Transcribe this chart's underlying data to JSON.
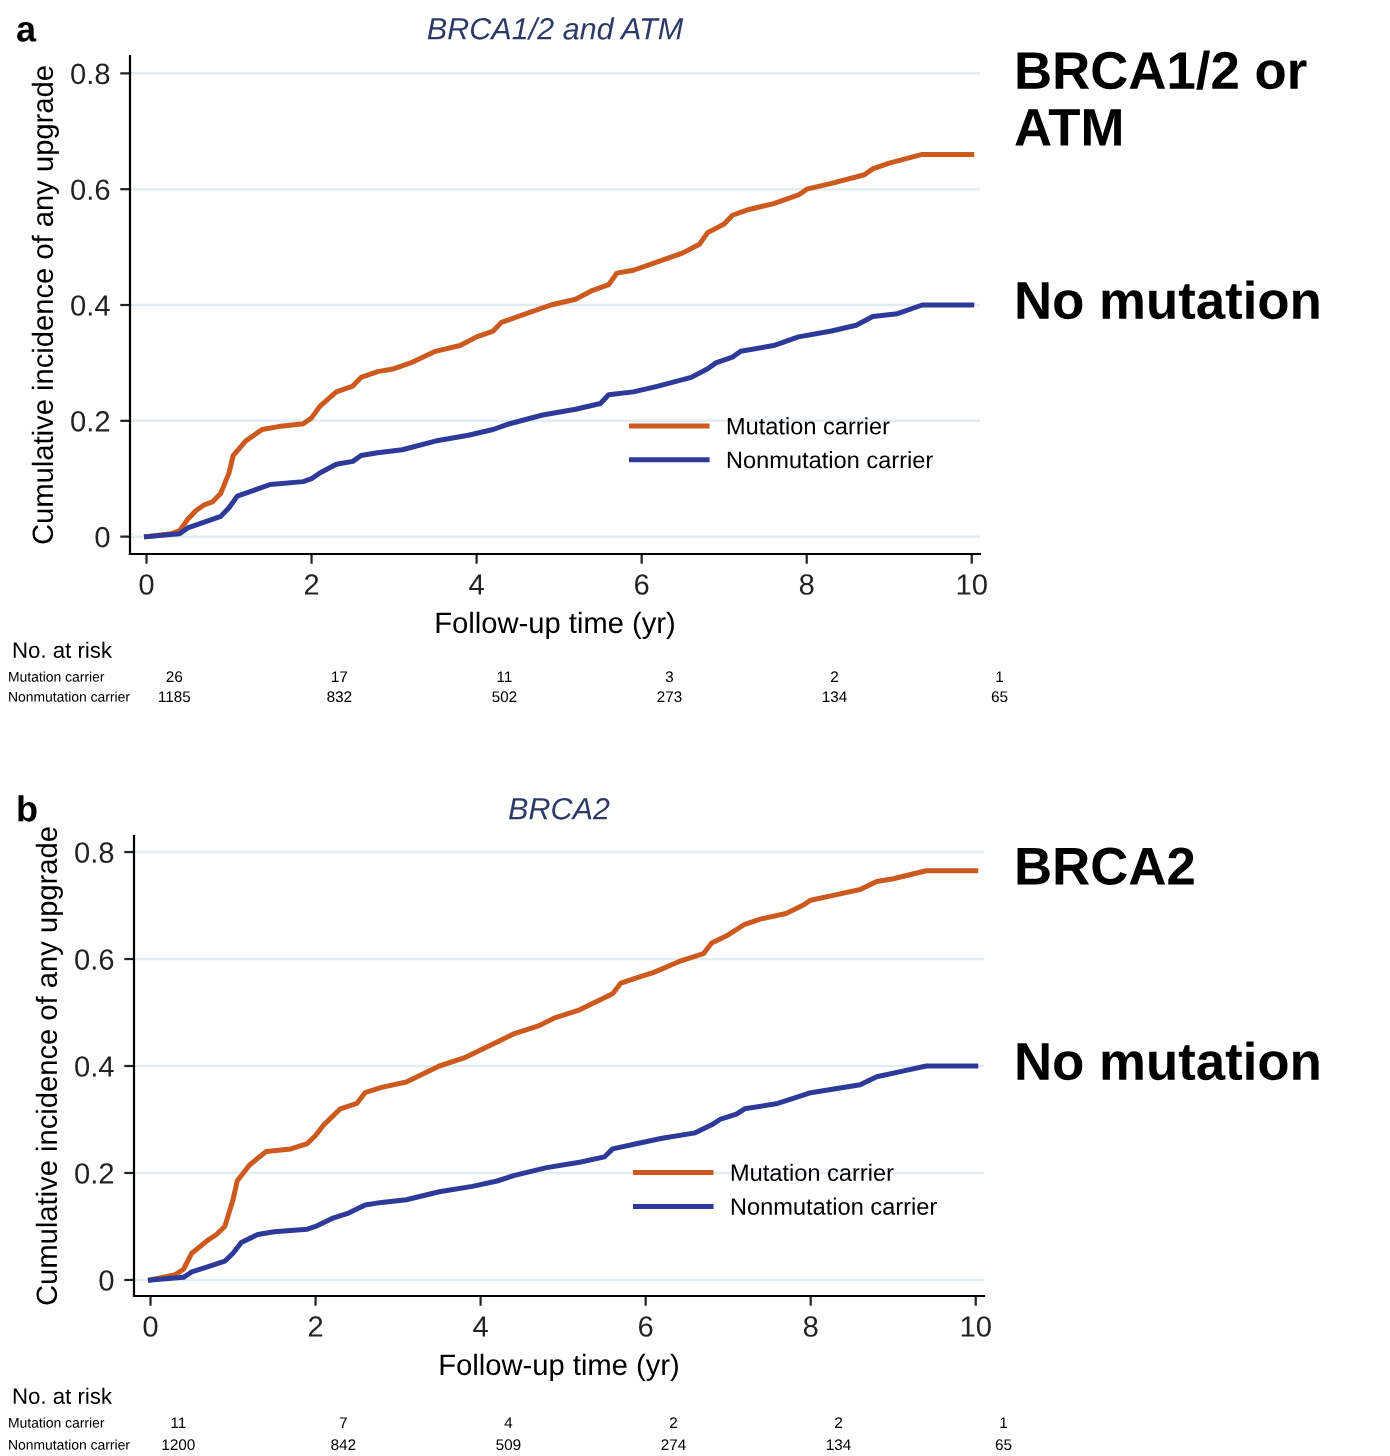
{
  "chart_data": [
    {
      "type": "line",
      "title": "BRCA1/2 and ATM",
      "xlabel": "Follow-up time (yr)",
      "ylabel": "Cumulative incidence of any upgrade",
      "xlim": [
        -0.2,
        10.1
      ],
      "ylim": [
        -0.03,
        0.83
      ],
      "xticks": [
        0,
        2,
        4,
        6,
        8,
        10
      ],
      "yticks": [
        0,
        0.2,
        0.4,
        0.6,
        0.8
      ],
      "grid": "y",
      "legend": "bottom right",
      "marker": "none",
      "line_style": "solid",
      "series": [
        {
          "name": "Mutation carrier",
          "color": "#cc5a1f",
          "x": [
            0,
            0.3,
            0.4,
            0.5,
            0.6,
            0.7,
            0.8,
            0.9,
            1.0,
            1.05,
            1.2,
            1.4,
            1.6,
            1.9,
            2.0,
            2.1,
            2.3,
            2.5,
            2.6,
            2.8,
            3.0,
            3.2,
            3.5,
            3.8,
            4.0,
            4.2,
            4.3,
            4.6,
            4.9,
            5.2,
            5.4,
            5.6,
            5.7,
            5.9,
            6.2,
            6.5,
            6.7,
            6.8,
            7.0,
            7.1,
            7.3,
            7.6,
            7.9,
            8.0,
            8.3,
            8.7,
            8.8,
            9.0,
            9.4,
            10
          ],
          "values": [
            0,
            0.005,
            0.01,
            0.03,
            0.045,
            0.055,
            0.06,
            0.075,
            0.11,
            0.14,
            0.165,
            0.185,
            0.19,
            0.195,
            0.205,
            0.225,
            0.25,
            0.26,
            0.275,
            0.285,
            0.29,
            0.3,
            0.32,
            0.33,
            0.345,
            0.355,
            0.37,
            0.385,
            0.4,
            0.41,
            0.425,
            0.435,
            0.455,
            0.46,
            0.475,
            0.49,
            0.505,
            0.525,
            0.54,
            0.555,
            0.565,
            0.575,
            0.59,
            0.6,
            0.61,
            0.625,
            0.635,
            0.645,
            0.66,
            0.66
          ]
        },
        {
          "name": "Nonmutation carrier",
          "color": "#2e3a9a",
          "x": [
            0,
            0.4,
            0.5,
            0.7,
            0.9,
            1.0,
            1.1,
            1.3,
            1.5,
            1.9,
            2.0,
            2.1,
            2.3,
            2.5,
            2.6,
            2.8,
            3.1,
            3.5,
            3.9,
            4.2,
            4.4,
            4.8,
            5.2,
            5.5,
            5.6,
            5.9,
            6.2,
            6.6,
            6.8,
            6.9,
            7.1,
            7.2,
            7.6,
            7.9,
            8.3,
            8.6,
            8.8,
            9.1,
            9.4,
            10
          ],
          "values": [
            0,
            0.005,
            0.015,
            0.025,
            0.035,
            0.05,
            0.07,
            0.08,
            0.09,
            0.095,
            0.1,
            0.11,
            0.125,
            0.13,
            0.14,
            0.145,
            0.15,
            0.165,
            0.175,
            0.185,
            0.195,
            0.21,
            0.22,
            0.23,
            0.245,
            0.25,
            0.26,
            0.275,
            0.29,
            0.3,
            0.31,
            0.32,
            0.33,
            0.345,
            0.355,
            0.365,
            0.38,
            0.385,
            0.4,
            0.4
          ]
        }
      ],
      "annotations": [
        "a",
        "BRCA1/2 or ATM",
        "No mutation",
        "No. at risk",
        "Mutation carrier",
        "26",
        "17",
        "11",
        "3",
        "2",
        "1",
        "Nonmutation carrier",
        "1185",
        "832",
        "502",
        "273",
        "134",
        "65"
      ]
    },
    {
      "type": "line",
      "title": "BRCA2",
      "xlabel": "Follow-up time (yr)",
      "ylabel": "Cumulative incidence of any upgrade",
      "xlim": [
        -0.2,
        10.1
      ],
      "ylim": [
        -0.03,
        0.83
      ],
      "xticks": [
        0,
        2,
        4,
        6,
        8,
        10
      ],
      "yticks": [
        0,
        0.2,
        0.4,
        0.6,
        0.8
      ],
      "grid": "y",
      "legend": "bottom right",
      "marker": "none",
      "line_style": "solid",
      "series": [
        {
          "name": "Mutation carrier",
          "color": "#cc5a1f",
          "x": [
            0,
            0.3,
            0.4,
            0.5,
            0.7,
            0.8,
            0.9,
            1.0,
            1.05,
            1.2,
            1.4,
            1.7,
            1.9,
            2.0,
            2.1,
            2.3,
            2.5,
            2.6,
            2.8,
            3.1,
            3.3,
            3.5,
            3.8,
            4.0,
            4.2,
            4.4,
            4.7,
            4.9,
            5.2,
            5.4,
            5.6,
            5.7,
            5.9,
            6.1,
            6.4,
            6.7,
            6.8,
            7.0,
            7.2,
            7.4,
            7.7,
            7.9,
            8.0,
            8.3,
            8.6,
            8.8,
            9.0,
            9.4,
            10
          ],
          "values": [
            0,
            0.01,
            0.02,
            0.05,
            0.075,
            0.085,
            0.1,
            0.15,
            0.185,
            0.215,
            0.24,
            0.245,
            0.255,
            0.27,
            0.29,
            0.32,
            0.33,
            0.35,
            0.36,
            0.37,
            0.385,
            0.4,
            0.415,
            0.43,
            0.445,
            0.46,
            0.475,
            0.49,
            0.505,
            0.52,
            0.535,
            0.555,
            0.565,
            0.575,
            0.595,
            0.61,
            0.63,
            0.645,
            0.665,
            0.675,
            0.685,
            0.7,
            0.71,
            0.72,
            0.73,
            0.745,
            0.75,
            0.765,
            0.765
          ]
        },
        {
          "name": "Nonmutation carrier",
          "color": "#2e3a9a",
          "x": [
            0,
            0.4,
            0.5,
            0.7,
            0.9,
            1.0,
            1.1,
            1.3,
            1.5,
            1.9,
            2.0,
            2.2,
            2.4,
            2.6,
            2.8,
            3.1,
            3.5,
            3.9,
            4.2,
            4.4,
            4.8,
            5.2,
            5.5,
            5.6,
            5.9,
            6.2,
            6.6,
            6.8,
            6.9,
            7.1,
            7.2,
            7.6,
            7.9,
            8.0,
            8.6,
            8.8,
            9.1,
            9.4,
            10
          ],
          "values": [
            0,
            0.005,
            0.015,
            0.025,
            0.035,
            0.05,
            0.07,
            0.085,
            0.09,
            0.095,
            0.1,
            0.115,
            0.125,
            0.14,
            0.145,
            0.15,
            0.165,
            0.175,
            0.185,
            0.195,
            0.21,
            0.22,
            0.23,
            0.245,
            0.255,
            0.265,
            0.275,
            0.29,
            0.3,
            0.31,
            0.32,
            0.33,
            0.345,
            0.35,
            0.365,
            0.38,
            0.39,
            0.4,
            0.4
          ]
        }
      ],
      "annotations": [
        "b",
        "BRCA2",
        "No mutation",
        "No. at risk",
        "Mutation carrier",
        "11",
        "7",
        "4",
        "2",
        "2",
        "1",
        "Nonmutation carrier",
        "1200",
        "842",
        "509",
        "274",
        "134",
        "65"
      ]
    }
  ]
}
